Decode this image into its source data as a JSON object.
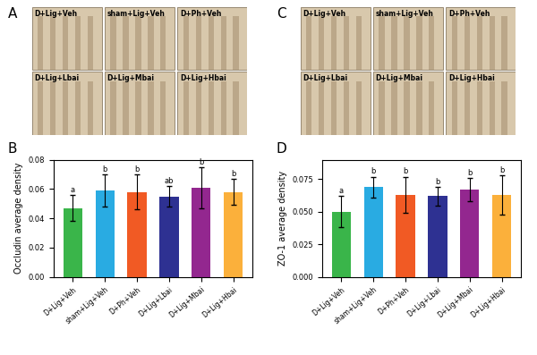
{
  "chart_data": [
    {
      "type": "bar",
      "panel": "B",
      "categories": [
        "D+Lig+Veh",
        "sham+Lig+Veh",
        "D+Ph+Veh",
        "D+Lig+Lbai",
        "D+Lig+Mbai",
        "D+Lig+Hbai"
      ],
      "values": [
        0.047,
        0.059,
        0.058,
        0.055,
        0.061,
        0.058
      ],
      "errors": [
        0.009,
        0.011,
        0.012,
        0.007,
        0.014,
        0.009
      ],
      "annotations": [
        "a",
        "b",
        "b",
        "ab",
        "b",
        "b"
      ],
      "colors": [
        "#3ab54a",
        "#29abe2",
        "#f15a24",
        "#2e3192",
        "#93278f",
        "#fbb03b"
      ],
      "y_label": "Occludin average density",
      "ylim": [
        0,
        0.08
      ],
      "yticks": [
        {
          "value": 0,
          "label": "0.00"
        },
        {
          "value": 0.02,
          "label": "0.02"
        },
        {
          "value": 0.04,
          "label": "0.04"
        },
        {
          "value": 0.06,
          "label": "0.06"
        },
        {
          "value": 0.08,
          "label": "0.08"
        }
      ],
      "grid": false
    },
    {
      "type": "bar",
      "panel": "D",
      "categories": [
        "D+Lig+Veh",
        "sham+Lig+Veh",
        "D+Ph+Veh",
        "D+Lig+Lbai",
        "D+Lig+Mbai",
        "D+Lig+Hbai"
      ],
      "values": [
        0.05,
        0.069,
        0.063,
        0.062,
        0.067,
        0.063
      ],
      "errors": [
        0.012,
        0.008,
        0.014,
        0.007,
        0.009,
        0.015
      ],
      "annotations": [
        "a",
        "b",
        "b",
        "b",
        "b",
        "b"
      ],
      "colors": [
        "#3ab54a",
        "#29abe2",
        "#f15a24",
        "#2e3192",
        "#93278f",
        "#fbb03b"
      ],
      "y_label": "ZO-1 average density",
      "ylim": [
        0,
        0.09
      ],
      "yticks": [
        {
          "value": 0,
          "label": "0.000"
        },
        {
          "value": 0.025,
          "label": "0.025"
        },
        {
          "value": 0.05,
          "label": "0.050"
        },
        {
          "value": 0.075,
          "label": "0.075"
        }
      ],
      "grid": false
    }
  ],
  "image_panels": [
    {
      "panel": "A",
      "labels": [
        "D+Lig+Veh",
        "sham+Lig+Veh",
        "D+Ph+Veh",
        "D+Lig+Lbai",
        "D+Lig+Mbai",
        "D+Lig+Hbai"
      ]
    },
    {
      "panel": "C",
      "labels": [
        "D+Lig+Veh",
        "sham+Lig+Veh",
        "D+Ph+Veh",
        "D+Lig+Lbai",
        "D+Lig+Mbai",
        "D+Lig+Hbai"
      ]
    }
  ]
}
